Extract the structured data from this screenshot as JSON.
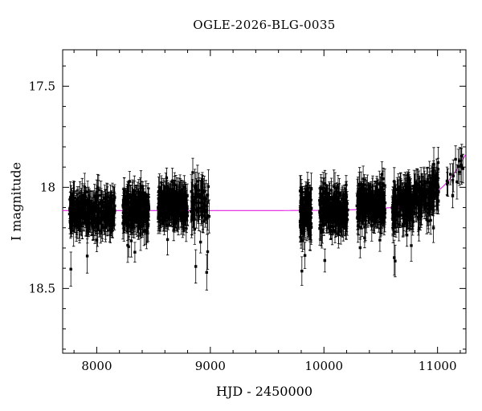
{
  "chart_data": {
    "type": "scatter",
    "title": "OGLE-2026-BLG-0035",
    "xlabel": "HJD - 2450000",
    "ylabel": "I magnitude",
    "xlim": [
      7700,
      11250
    ],
    "ylim": [
      18.82,
      17.32
    ],
    "x_ticks": [
      8000,
      9000,
      10000,
      11000
    ],
    "x_tick_labels": [
      "8000",
      "9000",
      "10000",
      "11000"
    ],
    "y_ticks": [
      17.5,
      18,
      18.5
    ],
    "y_tick_labels": [
      "17.5",
      "18",
      "18.5"
    ],
    "x_minor_step": 200,
    "y_minor_step": 0.1,
    "grid": false,
    "legend": "none",
    "background_color": "#ffffff",
    "axis_color": "#000000",
    "point_color": "#000000",
    "model_color": "#e020e0",
    "baseline_magnitude": 18.115,
    "seed": 7,
    "seasons": [
      {
        "x_min": 7760,
        "x_max": 8160,
        "n": 320,
        "mag_offset": 0.005,
        "sigma": 0.045,
        "err": 0.065,
        "outlier_frac": 0.015,
        "outlier_amp": 0.22
      },
      {
        "x_min": 8230,
        "x_max": 8460,
        "n": 250,
        "mag_offset": -0.005,
        "sigma": 0.045,
        "err": 0.065,
        "outlier_frac": 0.01,
        "outlier_amp": 0.18
      },
      {
        "x_min": 8540,
        "x_max": 8800,
        "n": 270,
        "mag_offset": -0.025,
        "sigma": 0.045,
        "err": 0.065,
        "outlier_frac": 0.01,
        "outlier_amp": 0.15
      },
      {
        "x_min": 8830,
        "x_max": 8990,
        "n": 70,
        "mag_offset": -0.035,
        "sigma": 0.055,
        "err": 0.075,
        "outlier_frac": 0.06,
        "outlier_amp": 0.25
      },
      {
        "x_min": 9790,
        "x_max": 9890,
        "n": 130,
        "mag_offset": 0.005,
        "sigma": 0.055,
        "err": 0.07,
        "outlier_frac": 0.02,
        "outlier_amp": 0.2
      },
      {
        "x_min": 9960,
        "x_max": 10210,
        "n": 260,
        "mag_offset": 0.0,
        "sigma": 0.045,
        "err": 0.065,
        "outlier_frac": 0.01,
        "outlier_amp": 0.15
      },
      {
        "x_min": 10290,
        "x_max": 10540,
        "n": 260,
        "mag_offset": -0.02,
        "sigma": 0.045,
        "err": 0.065,
        "outlier_frac": 0.008,
        "outlier_amp": 0.15
      },
      {
        "x_min": 10600,
        "x_max": 11010,
        "n": 360,
        "mag_offset": -0.01,
        "sigma": 0.05,
        "err": 0.068,
        "outlier_frac": 0.012,
        "outlier_amp": 0.18
      },
      {
        "x_min": 11080,
        "x_max": 11230,
        "n": 16,
        "mag_offset": 0.0,
        "sigma": 0.035,
        "err": 0.07,
        "outlier_frac": 0.0,
        "outlier_amp": 0.0
      }
    ],
    "model_curve": [
      [
        7700,
        18.115
      ],
      [
        9000,
        18.115
      ],
      [
        9500,
        18.115
      ],
      [
        10000,
        18.114
      ],
      [
        10200,
        18.112
      ],
      [
        10400,
        18.108
      ],
      [
        10600,
        18.1
      ],
      [
        10700,
        18.092
      ],
      [
        10800,
        18.078
      ],
      [
        10900,
        18.055
      ],
      [
        11000,
        18.02
      ],
      [
        11050,
        17.995
      ],
      [
        11100,
        17.965
      ],
      [
        11150,
        17.928
      ],
      [
        11200,
        17.885
      ],
      [
        11250,
        17.835
      ]
    ]
  }
}
